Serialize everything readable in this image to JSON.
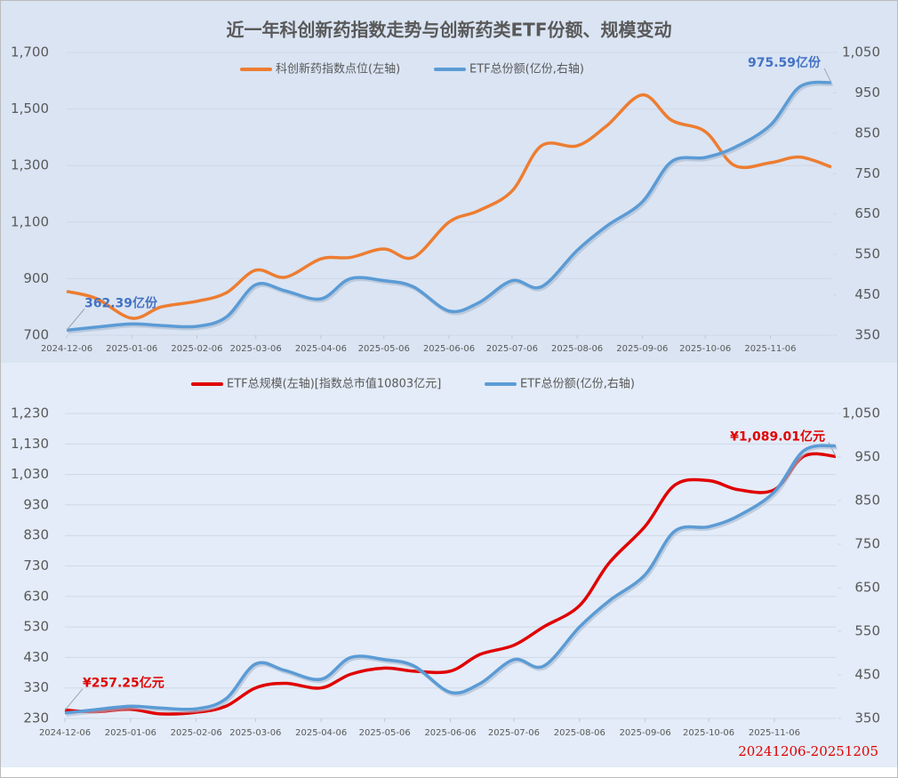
{
  "chart_data": [
    {
      "type": "line",
      "title": "近一年科创新药指数走势与创新药类ETF份额、规模变动",
      "x": [
        "2024-12-06",
        "2024-12-20",
        "2025-01-06",
        "2025-01-20",
        "2025-02-06",
        "2025-02-20",
        "2025-03-06",
        "2025-03-20",
        "2025-04-06",
        "2025-04-20",
        "2025-05-06",
        "2025-05-20",
        "2025-06-06",
        "2025-06-20",
        "2025-07-06",
        "2025-07-20",
        "2025-08-06",
        "2025-08-20",
        "2025-09-06",
        "2025-09-20",
        "2025-10-06",
        "2025-10-20",
        "2025-11-06",
        "2025-11-20",
        "2025-12-05"
      ],
      "xticks": [
        "2024-12-06",
        "2025-01-06",
        "2025-02-06",
        "2025-03-06",
        "2025-04-06",
        "2025-05-06",
        "2025-06-06",
        "2025-07-06",
        "2025-08-06",
        "2025-09-06",
        "2025-10-06",
        "2025-11-06"
      ],
      "ylim": [
        700,
        1700
      ],
      "yticks": [
        700,
        900,
        {
          "value": 1100,
          "label": "1,100"
        },
        {
          "value": 1300,
          "label": "1,300"
        },
        {
          "value": 1500,
          "label": "1,500"
        },
        {
          "value": 1700,
          "label": "1,700"
        }
      ],
      "y2lim": [
        350,
        1050
      ],
      "y2ticks": [
        350,
        450,
        550,
        650,
        750,
        850,
        950,
        {
          "value": 1050,
          "label": "1,050"
        }
      ],
      "grid": true,
      "series": [
        {
          "name": "科创新药指数点位(左轴)",
          "color": "#ed7d31",
          "values": [
            855,
            830,
            760,
            800,
            820,
            850,
            930,
            905,
            970,
            975,
            1005,
            975,
            1100,
            1140,
            1210,
            1370,
            1370,
            1440,
            1550,
            1460,
            1420,
            1300,
            1310,
            1330,
            1295
          ]
        },
        {
          "name": "ETF总份额(亿份,右轴)",
          "color": "#5b9bd5",
          "axis": "y2",
          "values": [
            362.39,
            370,
            378,
            374,
            372,
            395,
            475,
            460,
            440,
            490,
            485,
            470,
            410,
            430,
            485,
            470,
            560,
            620,
            680,
            780,
            790,
            815,
            870,
            965,
            975.59
          ],
          "value_labels": [
            "362.39亿份",
            null,
            null,
            null,
            null,
            null,
            null,
            null,
            null,
            null,
            null,
            null,
            null,
            null,
            null,
            null,
            null,
            null,
            null,
            null,
            null,
            null,
            null,
            null,
            "975.59亿份"
          ]
        }
      ]
    },
    {
      "type": "line",
      "x": [
        "2024-12-06",
        "2024-12-20",
        "2025-01-06",
        "2025-01-20",
        "2025-02-06",
        "2025-02-20",
        "2025-03-06",
        "2025-03-20",
        "2025-04-06",
        "2025-04-20",
        "2025-05-06",
        "2025-05-20",
        "2025-06-06",
        "2025-06-20",
        "2025-07-06",
        "2025-07-20",
        "2025-08-06",
        "2025-08-20",
        "2025-09-06",
        "2025-09-20",
        "2025-10-06",
        "2025-10-20",
        "2025-11-06",
        "2025-11-20",
        "2025-12-05"
      ],
      "xticks": [
        "2024-12-06",
        "2025-01-06",
        "2025-02-06",
        "2025-03-06",
        "2025-04-06",
        "2025-05-06",
        "2025-06-06",
        "2025-07-06",
        "2025-08-06",
        "2025-09-06",
        "2025-10-06",
        "2025-11-06"
      ],
      "ylim": [
        230,
        1230
      ],
      "yticks": [
        230,
        330,
        430,
        530,
        630,
        730,
        830,
        930,
        {
          "value": 1030,
          "label": "1,030"
        },
        {
          "value": 1130,
          "label": "1,130"
        },
        {
          "value": 1230,
          "label": "1,230"
        }
      ],
      "y2lim": [
        350,
        1050
      ],
      "y2ticks": [
        350,
        450,
        550,
        650,
        750,
        850,
        950,
        {
          "value": 1050,
          "label": "1,050"
        }
      ],
      "grid": true,
      "series": [
        {
          "name": "ETF总规模(左轴)[指数总市值10803亿元]",
          "color": "#e00000",
          "values": [
            257.25,
            252,
            260,
            245,
            250,
            270,
            330,
            345,
            330,
            375,
            395,
            385,
            385,
            440,
            470,
            530,
            600,
            740,
            860,
            995,
            1010,
            980,
            980,
            1090,
            1089.01
          ],
          "value_labels": [
            "¥257.25亿元",
            null,
            null,
            null,
            null,
            null,
            null,
            null,
            null,
            null,
            null,
            null,
            null,
            null,
            null,
            null,
            null,
            null,
            null,
            null,
            null,
            null,
            null,
            null,
            "¥1,089.01亿元"
          ]
        },
        {
          "name": "ETF总份额(亿份,右轴)",
          "color": "#5b9bd5",
          "axis": "y2",
          "values": [
            362.39,
            370,
            378,
            374,
            372,
            395,
            475,
            460,
            440,
            490,
            485,
            470,
            410,
            430,
            485,
            470,
            560,
            620,
            680,
            780,
            790,
            815,
            870,
            965,
            975.59
          ]
        }
      ]
    }
  ],
  "date_range": "20241206-20251205"
}
